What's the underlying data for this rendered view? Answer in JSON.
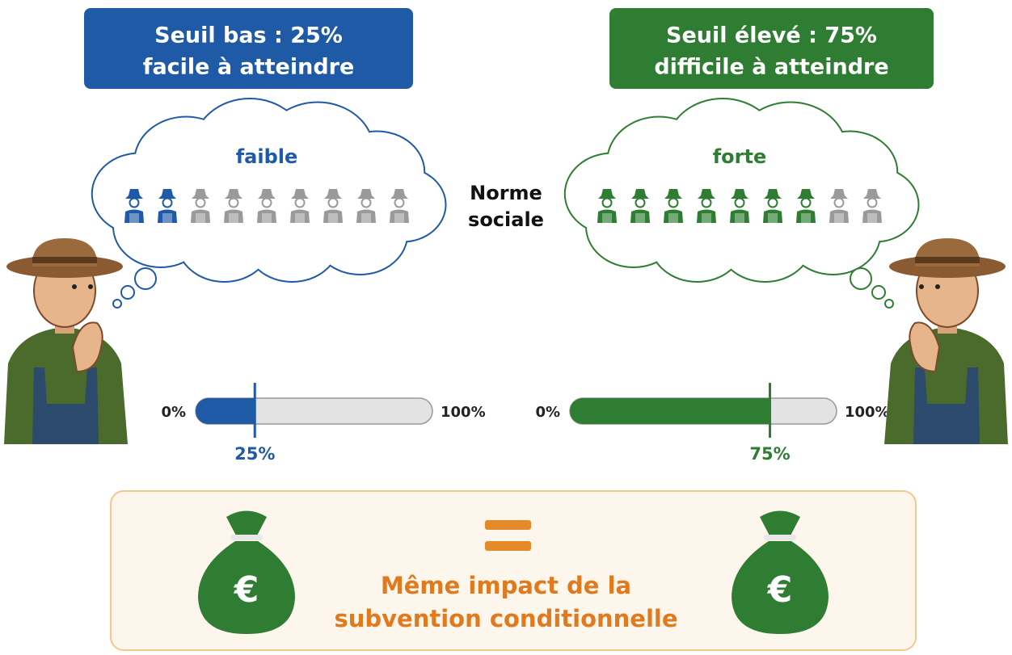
{
  "left": {
    "title_lines": [
      "Seuil bas : 25%",
      "facile à atteindre"
    ],
    "color": "#1f5aa6",
    "norm": "faible",
    "figures": {
      "total": 9,
      "highlighted": 2
    },
    "bar": {
      "min": {
        "value": 0,
        "label": "0%"
      },
      "max": {
        "value": 100,
        "label": "100%"
      },
      "threshold": {
        "value": 25,
        "label": "25%"
      }
    }
  },
  "right": {
    "title_lines": [
      "Seuil élevé : 75%",
      "difficile à atteindre"
    ],
    "color": "#2e7d32",
    "norm": "forte",
    "figures": {
      "total": 9,
      "highlighted": 7
    },
    "bar": {
      "min": {
        "value": 0,
        "label": "0%"
      },
      "max": {
        "value": 100,
        "label": "100%"
      },
      "threshold": {
        "value": 75,
        "label": "75%"
      }
    }
  },
  "center_label": [
    "Norme",
    "sociale"
  ],
  "footer": {
    "lines": [
      "Même impact de la",
      "subvention conditionnelle"
    ],
    "currency": "€"
  }
}
